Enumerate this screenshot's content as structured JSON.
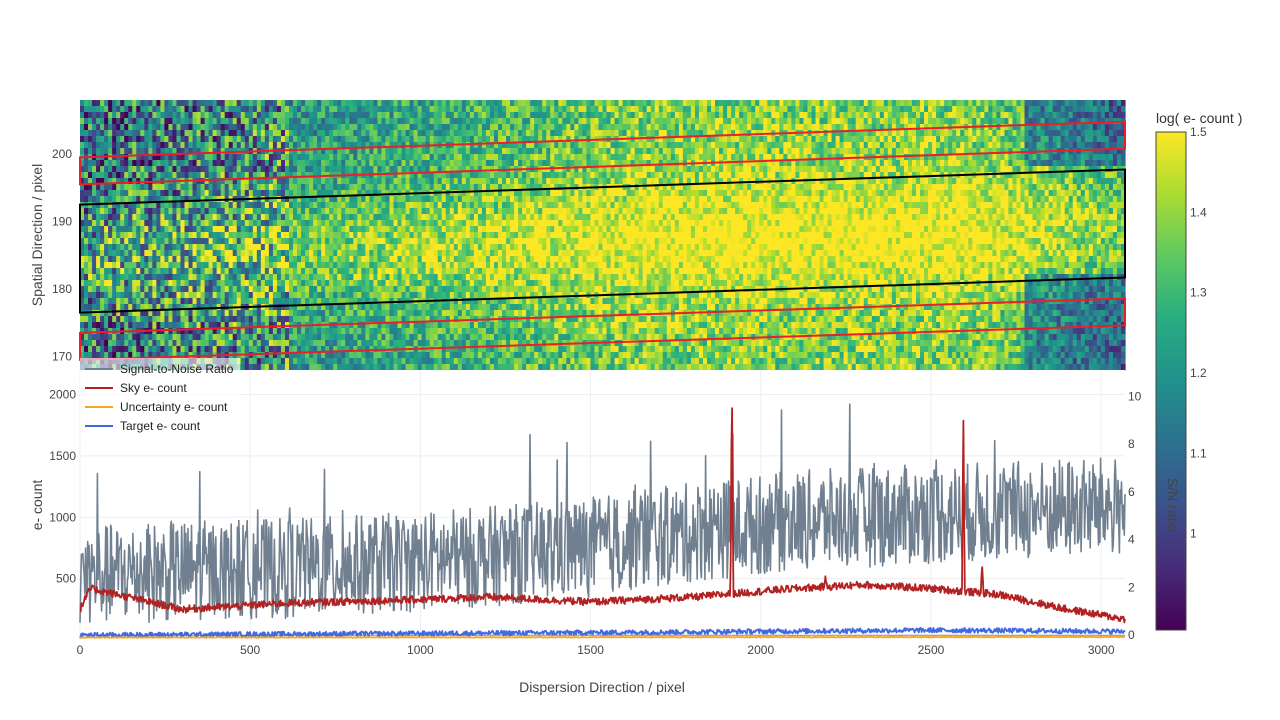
{
  "chart_data": [
    {
      "type": "heatmap",
      "name": "spectrum-image",
      "ylabel": "Spatial Direction / pixel",
      "ylim": [
        168,
        208
      ],
      "xlim": [
        0,
        3070
      ],
      "yticks": [
        170,
        180,
        190,
        200
      ],
      "ytick_labels": [
        "170",
        "180",
        "190",
        "200"
      ],
      "colorscale": "Viridis",
      "colorbar": {
        "title": "log( e- count )",
        "range": [
          0.88,
          1.5
        ],
        "ticks": [
          1,
          1.1,
          1.2,
          1.3,
          1.4,
          1.5
        ],
        "tick_labels": [
          "1",
          "1.1",
          "1.2",
          "1.3",
          "1.4",
          "1.5"
        ]
      },
      "apertures": [
        {
          "name": "sky-upper",
          "color": "#e8202a",
          "x": [
            0,
            3070
          ],
          "lower": [
            195.5,
            200.8
          ],
          "upper": [
            199.5,
            204.8
          ]
        },
        {
          "name": "target",
          "color": "#000000",
          "x": [
            0,
            3070
          ],
          "lower": [
            176.5,
            181.7
          ],
          "upper": [
            192.5,
            197.7
          ]
        },
        {
          "name": "sky-lower",
          "color": "#e8202a",
          "x": [
            0,
            3070
          ],
          "lower": [
            169.5,
            174.6
          ],
          "upper": [
            173.5,
            178.6
          ]
        }
      ]
    },
    {
      "type": "line",
      "name": "extracted-spectrum",
      "xlabel": "Dispersion Direction / pixel",
      "ylabel": "e- count",
      "y2label": "S/N ratio",
      "xlim": [
        0,
        3070
      ],
      "ylim": [
        0,
        2200
      ],
      "y2lim": [
        -0.2,
        11.1
      ],
      "xticks": [
        0,
        500,
        1000,
        1500,
        2000,
        2500,
        3000
      ],
      "xtick_labels": [
        "0",
        "500",
        "1000",
        "1500",
        "2000",
        "2500",
        "3000"
      ],
      "yticks": [
        500,
        1000,
        1500,
        2000
      ],
      "ytick_labels": [
        "500",
        "1000",
        "1500",
        "2000"
      ],
      "y2ticks": [
        0,
        2,
        4,
        6,
        8,
        10
      ],
      "y2tick_labels": [
        "0",
        "2",
        "4",
        "6",
        "8",
        "10"
      ],
      "series": [
        {
          "name": "Signal-to-Noise Ratio",
          "color": "#708090",
          "axis": "y2",
          "x": [
            0,
            300,
            600,
            900,
            1200,
            1500,
            1800,
            2100,
            2400,
            2700,
            3070
          ],
          "values": [
            2.5,
            2.7,
            2.8,
            3.0,
            3.3,
            3.7,
            4.3,
            4.8,
            5.0,
            5.2,
            5.4
          ]
        },
        {
          "name": "Sky e- count",
          "color": "#b22222",
          "axis": "y",
          "x": [
            0,
            30,
            300,
            600,
            1000,
            1200,
            1500,
            1800,
            2100,
            2300,
            2500,
            2700,
            2900,
            3070
          ],
          "values": [
            250,
            420,
            250,
            300,
            330,
            350,
            310,
            350,
            420,
            450,
            420,
            370,
            250,
            170
          ],
          "peaks": [
            {
              "x": 1915,
              "value": 2200
            },
            {
              "x": 2595,
              "value": 1850
            },
            {
              "x": 2650,
              "value": 620
            },
            {
              "x": 2190,
              "value": 520
            }
          ]
        },
        {
          "name": "Uncertainty e- count",
          "color": "#f5a623",
          "axis": "y",
          "x": [
            0,
            3070
          ],
          "values": [
            20,
            25
          ]
        },
        {
          "name": "Target e- count",
          "color": "#4169e1",
          "axis": "y",
          "x": [
            0,
            1500,
            2500,
            3070
          ],
          "values": [
            40,
            60,
            80,
            70
          ]
        }
      ]
    }
  ]
}
